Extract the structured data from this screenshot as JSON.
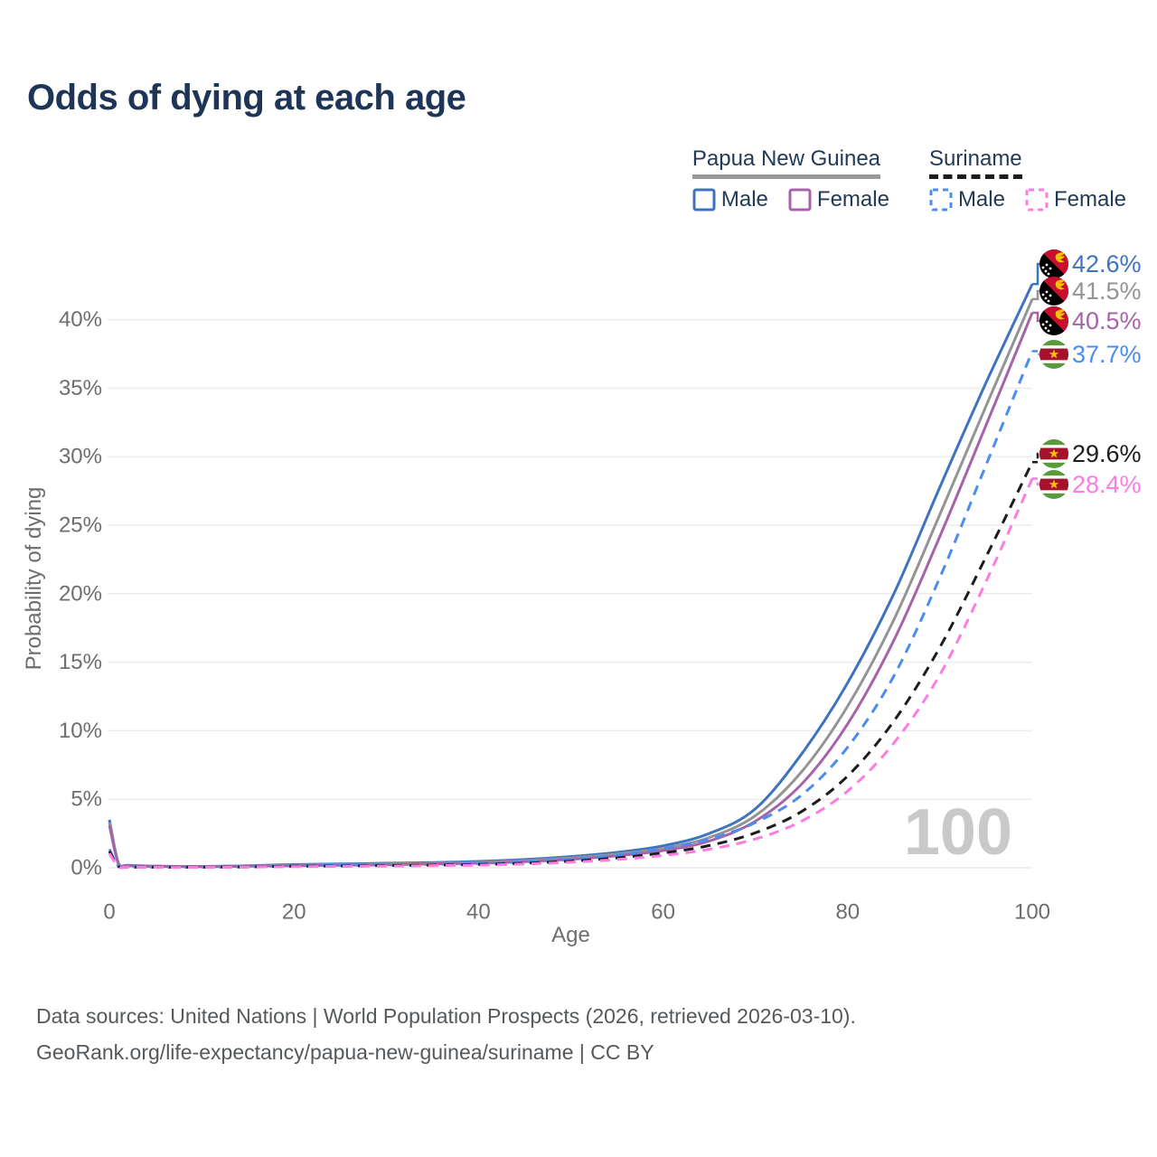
{
  "title": "Odds of dying at each age",
  "watermark": "100",
  "legend": {
    "groups": [
      {
        "label": "Papua New Guinea",
        "line_style": "solid",
        "underline_color": "#9a9a9a",
        "items": [
          {
            "label": "Male",
            "color": "#3f72bf",
            "dashed": false
          },
          {
            "label": "Female",
            "color": "#a763a9",
            "dashed": false
          }
        ]
      },
      {
        "label": "Suriname",
        "line_style": "dashed",
        "underline_color": "#1c1c1c",
        "items": [
          {
            "label": "Male",
            "color": "#4a8cf0",
            "dashed": true
          },
          {
            "label": "Female",
            "color": "#fd7ce2",
            "dashed": true
          }
        ]
      }
    ]
  },
  "footer": {
    "line1": "Data sources: United Nations | World Population Prospects (2026, retrieved 2026-03-10).",
    "line2": "GeoRank.org/life-expectancy/papua-new-guinea/suriname | CC BY"
  },
  "chart_data": {
    "type": "line",
    "title": "Odds of dying at each age",
    "xlabel": "Age",
    "ylabel": "Probability of dying",
    "xlim": [
      0,
      100
    ],
    "ylim_percent": [
      0,
      44
    ],
    "x_ticks": [
      "0",
      "20",
      "40",
      "60",
      "80",
      "100"
    ],
    "x_tick_values": [
      0,
      20,
      40,
      60,
      80,
      100
    ],
    "y_ticks": [
      "0%",
      "5%",
      "10%",
      "15%",
      "20%",
      "25%",
      "30%",
      "35%",
      "40%"
    ],
    "y_tick_values": [
      0,
      5,
      10,
      15,
      20,
      25,
      30,
      35,
      40
    ],
    "grid": "horizontal",
    "ages": [
      0,
      1,
      2,
      5,
      10,
      15,
      20,
      25,
      30,
      35,
      40,
      45,
      50,
      55,
      60,
      65,
      70,
      75,
      80,
      85,
      90,
      95,
      100
    ],
    "series": [
      {
        "name": "Papua New Guinea Male",
        "country": "Papua New Guinea",
        "sex": "Male",
        "color": "#3f72bf",
        "line_style": "solid",
        "flag_icon": "papua-new-guinea-flag-icon",
        "end_value": 42.6,
        "end_label": "42.6%",
        "values": [
          3.5,
          0.3,
          0.18,
          0.12,
          0.1,
          0.15,
          0.24,
          0.28,
          0.33,
          0.38,
          0.46,
          0.6,
          0.82,
          1.12,
          1.6,
          2.5,
          4.3,
          8.3,
          13.5,
          20.0,
          27.8,
          35.4,
          42.6
        ]
      },
      {
        "name": "Papua New Guinea Both sexes",
        "country": "Papua New Guinea",
        "sex": "Both",
        "color": "#949494",
        "line_style": "solid",
        "flag_icon": "papua-new-guinea-flag-icon",
        "end_value": 41.5,
        "end_label": "41.5%",
        "values": [
          3.3,
          0.27,
          0.16,
          0.11,
          0.09,
          0.13,
          0.19,
          0.23,
          0.27,
          0.32,
          0.39,
          0.52,
          0.72,
          1.0,
          1.42,
          2.2,
          3.8,
          7.0,
          11.8,
          18.1,
          25.8,
          33.7,
          41.5
        ]
      },
      {
        "name": "Papua New Guinea Female",
        "country": "Papua New Guinea",
        "sex": "Female",
        "color": "#a763a9",
        "line_style": "solid",
        "flag_icon": "papua-new-guinea-flag-icon",
        "end_value": 40.5,
        "end_label": "40.5%",
        "values": [
          3.1,
          0.25,
          0.15,
          0.1,
          0.08,
          0.11,
          0.15,
          0.18,
          0.22,
          0.27,
          0.33,
          0.44,
          0.62,
          0.88,
          1.25,
          1.95,
          3.4,
          6.1,
          10.5,
          16.6,
          24.2,
          32.3,
          40.5
        ]
      },
      {
        "name": "Suriname Male",
        "country": "Suriname",
        "sex": "Male",
        "color": "#4a8cf0",
        "line_style": "dashed",
        "flag_icon": "suriname-flag-icon",
        "end_value": 37.7,
        "end_label": "37.7%",
        "values": [
          1.35,
          0.1,
          0.06,
          0.04,
          0.04,
          0.08,
          0.14,
          0.17,
          0.2,
          0.24,
          0.3,
          0.42,
          0.6,
          0.92,
          1.4,
          2.1,
          3.3,
          5.3,
          8.8,
          14.0,
          21.2,
          29.4,
          37.7
        ]
      },
      {
        "name": "Suriname Both sexes",
        "country": "Suriname",
        "sex": "Both",
        "color": "#1c1c1c",
        "line_style": "dashed",
        "flag_icon": "suriname-flag-icon",
        "end_value": 29.6,
        "end_label": "29.6%",
        "values": [
          1.2,
          0.09,
          0.05,
          0.04,
          0.04,
          0.06,
          0.11,
          0.13,
          0.16,
          0.19,
          0.24,
          0.33,
          0.48,
          0.72,
          1.08,
          1.62,
          2.55,
          4.1,
          6.7,
          10.7,
          16.1,
          22.7,
          29.6
        ]
      },
      {
        "name": "Suriname Female",
        "country": "Suriname",
        "sex": "Female",
        "color": "#fd7ce2",
        "line_style": "dashed",
        "flag_icon": "suriname-flag-icon",
        "end_value": 28.4,
        "end_label": "28.4%",
        "values": [
          1.05,
          0.08,
          0.05,
          0.03,
          0.03,
          0.05,
          0.08,
          0.1,
          0.12,
          0.15,
          0.19,
          0.27,
          0.4,
          0.6,
          0.9,
          1.35,
          2.1,
          3.4,
          5.6,
          9.1,
          14.1,
          20.9,
          28.4
        ]
      }
    ]
  }
}
